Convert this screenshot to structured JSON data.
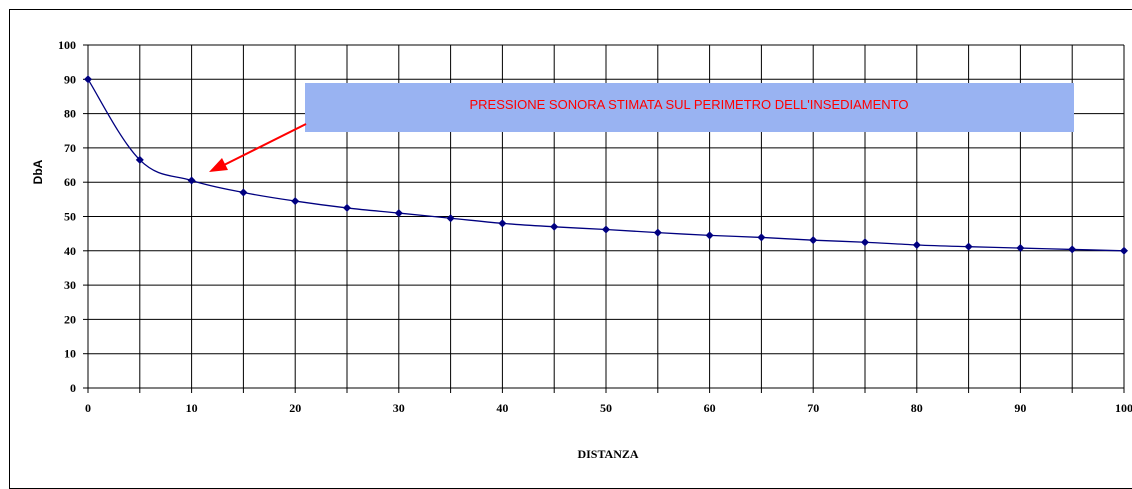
{
  "chart_data": {
    "type": "line",
    "title": "",
    "xlabel": "DISTANZA",
    "ylabel": "DbA",
    "xlim": [
      0,
      100
    ],
    "ylim": [
      0,
      100
    ],
    "x_ticks": [
      0,
      10,
      20,
      30,
      40,
      50,
      60,
      70,
      80,
      90,
      100
    ],
    "y_ticks": [
      0,
      10,
      20,
      30,
      40,
      50,
      60,
      70,
      80,
      90,
      100
    ],
    "grid": true,
    "legend": "none",
    "series": [
      {
        "line_color": "#000080",
        "marker": "diamond",
        "x": [
          0,
          5,
          10,
          15,
          20,
          25,
          30,
          35,
          40,
          45,
          50,
          55,
          60,
          65,
          70,
          75,
          80,
          85,
          90,
          95,
          100
        ],
        "y": [
          90,
          66.5,
          60.5,
          57,
          54.5,
          52.5,
          51,
          49.5,
          48,
          47,
          46.2,
          45.3,
          44.5,
          43.9,
          43.1,
          42.5,
          41.7,
          41.2,
          40.8,
          40.4,
          40
        ]
      }
    ],
    "annotation": {
      "text": "PRESSIONE SONORA STIMATA SUL PERIMETRO DELL'INSEDIAMENTO",
      "text_color": "#ff0000",
      "box_color": "#99b3f2",
      "arrow_color": "#ff0000",
      "points_to": {
        "x": 11.5,
        "y": 62
      }
    }
  }
}
